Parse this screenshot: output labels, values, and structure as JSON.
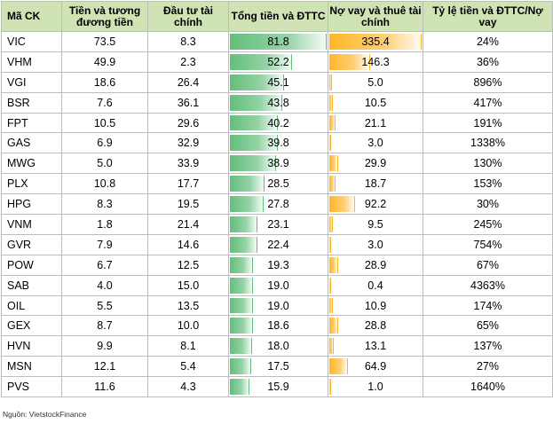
{
  "columns": [
    "Mã CK",
    "Tiền và tương đương tiền",
    "Đầu tư tài chính",
    "Tổng tiền và ĐTTC",
    "Nợ vay và thuê tài chính",
    "Tỷ lệ tiền và ĐTTC/Nợ vay"
  ],
  "source": "Nguồn: VietstockFinance",
  "colors": {
    "header_bg": "#cfe3b5",
    "green_bar": "#63be7b",
    "orange_bar": "#ffb628"
  },
  "chart_data": {
    "type": "table",
    "bar_max": {
      "total": 81.8,
      "debt": 335.4
    },
    "rows": [
      {
        "code": "VIC",
        "cash": "73.5",
        "invest": "8.3",
        "total": "81.8",
        "debt": "335.4",
        "ratio": "24%"
      },
      {
        "code": "VHM",
        "cash": "49.9",
        "invest": "2.3",
        "total": "52.2",
        "debt": "146.3",
        "ratio": "36%"
      },
      {
        "code": "VGI",
        "cash": "18.6",
        "invest": "26.4",
        "total": "45.1",
        "debt": "5.0",
        "ratio": "896%"
      },
      {
        "code": "BSR",
        "cash": "7.6",
        "invest": "36.1",
        "total": "43.8",
        "debt": "10.5",
        "ratio": "417%"
      },
      {
        "code": "FPT",
        "cash": "10.5",
        "invest": "29.6",
        "total": "40.2",
        "debt": "21.1",
        "ratio": "191%"
      },
      {
        "code": "GAS",
        "cash": "6.9",
        "invest": "32.9",
        "total": "39.8",
        "debt": "3.0",
        "ratio": "1338%"
      },
      {
        "code": "MWG",
        "cash": "5.0",
        "invest": "33.9",
        "total": "38.9",
        "debt": "29.9",
        "ratio": "130%"
      },
      {
        "code": "PLX",
        "cash": "10.8",
        "invest": "17.7",
        "total": "28.5",
        "debt": "18.7",
        "ratio": "153%"
      },
      {
        "code": "HPG",
        "cash": "8.3",
        "invest": "19.5",
        "total": "27.8",
        "debt": "92.2",
        "ratio": "30%"
      },
      {
        "code": "VNM",
        "cash": "1.8",
        "invest": "21.4",
        "total": "23.1",
        "debt": "9.5",
        "ratio": "245%"
      },
      {
        "code": "GVR",
        "cash": "7.9",
        "invest": "14.6",
        "total": "22.4",
        "debt": "3.0",
        "ratio": "754%"
      },
      {
        "code": "POW",
        "cash": "6.7",
        "invest": "12.5",
        "total": "19.3",
        "debt": "28.9",
        "ratio": "67%"
      },
      {
        "code": "SAB",
        "cash": "4.0",
        "invest": "15.0",
        "total": "19.0",
        "debt": "0.4",
        "ratio": "4363%"
      },
      {
        "code": "OIL",
        "cash": "5.5",
        "invest": "13.5",
        "total": "19.0",
        "debt": "10.9",
        "ratio": "174%"
      },
      {
        "code": "GEX",
        "cash": "8.7",
        "invest": "10.0",
        "total": "18.6",
        "debt": "28.8",
        "ratio": "65%"
      },
      {
        "code": "HVN",
        "cash": "9.9",
        "invest": "8.1",
        "total": "18.0",
        "debt": "13.1",
        "ratio": "137%"
      },
      {
        "code": "MSN",
        "cash": "12.1",
        "invest": "5.4",
        "total": "17.5",
        "debt": "64.9",
        "ratio": "27%"
      },
      {
        "code": "PVS",
        "cash": "11.6",
        "invest": "4.3",
        "total": "15.9",
        "debt": "1.0",
        "ratio": "1640%"
      }
    ]
  }
}
